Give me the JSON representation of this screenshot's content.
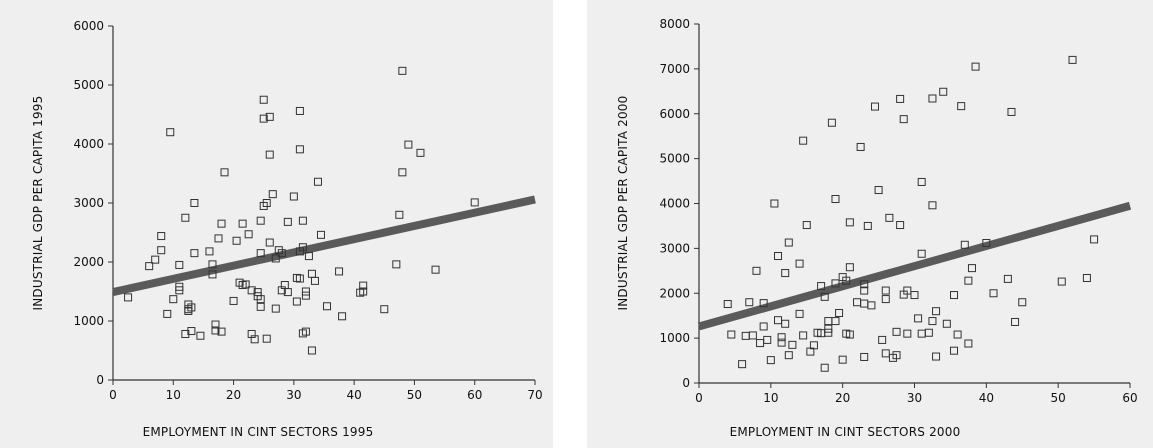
{
  "chart_data": [
    {
      "type": "scatter",
      "xlabel": "EMPLOYMENT IN CINT SECTORS 1995",
      "ylabel": "INDUSTRIAL GDP PER CAPITA 1995",
      "xlim": [
        0,
        70
      ],
      "ylim": [
        0,
        6000
      ],
      "xticks": [
        0,
        10,
        20,
        30,
        40,
        50,
        60,
        70
      ],
      "yticks": [
        0,
        1000,
        2000,
        3000,
        4000,
        5000,
        6000
      ],
      "trendline": {
        "x": [
          0,
          70
        ],
        "y": [
          1490,
          3060
        ]
      },
      "points": [
        [
          2.5,
          1400
        ],
        [
          6,
          1930
        ],
        [
          7,
          2040
        ],
        [
          8,
          2200
        ],
        [
          8,
          2440
        ],
        [
          9,
          1120
        ],
        [
          9.5,
          4200
        ],
        [
          10,
          1370
        ],
        [
          11,
          1950
        ],
        [
          11,
          1580
        ],
        [
          11,
          1520
        ],
        [
          12,
          2750
        ],
        [
          12,
          780
        ],
        [
          12.5,
          1280
        ],
        [
          12.5,
          1200
        ],
        [
          12.5,
          1170
        ],
        [
          13,
          1230
        ],
        [
          13,
          830
        ],
        [
          13.5,
          2150
        ],
        [
          13.5,
          3000
        ],
        [
          14.5,
          750
        ],
        [
          16,
          2180
        ],
        [
          16.5,
          1960
        ],
        [
          16.5,
          1790
        ],
        [
          17,
          940
        ],
        [
          17,
          840
        ],
        [
          17.5,
          2400
        ],
        [
          18,
          2650
        ],
        [
          18,
          820
        ],
        [
          18.5,
          3520
        ],
        [
          20,
          1340
        ],
        [
          20.5,
          2360
        ],
        [
          21,
          1650
        ],
        [
          21.5,
          2650
        ],
        [
          21.5,
          1610
        ],
        [
          22,
          1620
        ],
        [
          22.5,
          2470
        ],
        [
          23,
          1520
        ],
        [
          23,
          780
        ],
        [
          23.5,
          690
        ],
        [
          24,
          1490
        ],
        [
          24,
          1420
        ],
        [
          24.5,
          1370
        ],
        [
          24.5,
          1240
        ],
        [
          24.5,
          2150
        ],
        [
          24.5,
          2700
        ],
        [
          25,
          4430
        ],
        [
          25,
          4750
        ],
        [
          25,
          2950
        ],
        [
          25.5,
          700
        ],
        [
          25.5,
          3000
        ],
        [
          26,
          4460
        ],
        [
          26,
          3820
        ],
        [
          26,
          2330
        ],
        [
          26.5,
          3150
        ],
        [
          27,
          2060
        ],
        [
          27,
          1210
        ],
        [
          27.5,
          2200
        ],
        [
          28,
          1520
        ],
        [
          28,
          2150
        ],
        [
          28.5,
          1610
        ],
        [
          29,
          2680
        ],
        [
          29,
          1490
        ],
        [
          30,
          3110
        ],
        [
          30.5,
          1730
        ],
        [
          30.5,
          1330
        ],
        [
          31,
          2180
        ],
        [
          31,
          4560
        ],
        [
          31,
          3910
        ],
        [
          31,
          1720
        ],
        [
          31.5,
          2250
        ],
        [
          31.5,
          790
        ],
        [
          31.5,
          2700
        ],
        [
          32,
          1500
        ],
        [
          32,
          1430
        ],
        [
          32,
          820
        ],
        [
          32.5,
          2100
        ],
        [
          33,
          500
        ],
        [
          33,
          1800
        ],
        [
          33.5,
          1680
        ],
        [
          34,
          3360
        ],
        [
          34.5,
          2460
        ],
        [
          35.5,
          1250
        ],
        [
          37.5,
          1840
        ],
        [
          38,
          1080
        ],
        [
          41,
          1480
        ],
        [
          41.5,
          1500
        ],
        [
          41.5,
          1600
        ],
        [
          45,
          1200
        ],
        [
          47,
          1960
        ],
        [
          47.5,
          2800
        ],
        [
          48,
          3520
        ],
        [
          48,
          5240
        ],
        [
          49,
          3990
        ],
        [
          51,
          3850
        ],
        [
          53.5,
          1870
        ],
        [
          60,
          3010
        ]
      ]
    },
    {
      "type": "scatter",
      "xlabel": "EMPLOYMENT IN CINT SECTORS 2000",
      "ylabel": "INDUSTRIAL GDP PER CAPITA 2000",
      "xlim": [
        0,
        60
      ],
      "ylim": [
        0,
        8000
      ],
      "xticks": [
        0,
        10,
        20,
        30,
        40,
        50,
        60
      ],
      "yticks": [
        0,
        1000,
        2000,
        3000,
        4000,
        5000,
        6000,
        7000,
        8000
      ],
      "trendline": {
        "x": [
          0,
          60
        ],
        "y": [
          1260,
          3950
        ]
      },
      "points": [
        [
          4,
          1760
        ],
        [
          4.5,
          1080
        ],
        [
          6,
          420
        ],
        [
          6.5,
          1050
        ],
        [
          7,
          1800
        ],
        [
          7.5,
          1060
        ],
        [
          8,
          2500
        ],
        [
          8.5,
          890
        ],
        [
          9,
          1780
        ],
        [
          9,
          1260
        ],
        [
          9.5,
          960
        ],
        [
          10,
          510
        ],
        [
          10.5,
          4000
        ],
        [
          11,
          1400
        ],
        [
          11,
          2830
        ],
        [
          11.5,
          1020
        ],
        [
          11.5,
          900
        ],
        [
          12,
          1320
        ],
        [
          12,
          2450
        ],
        [
          12.5,
          3130
        ],
        [
          12.5,
          620
        ],
        [
          13,
          850
        ],
        [
          14,
          1540
        ],
        [
          14,
          2660
        ],
        [
          14.5,
          1060
        ],
        [
          14.5,
          5400
        ],
        [
          15,
          3520
        ],
        [
          15.5,
          700
        ],
        [
          16,
          840
        ],
        [
          16.5,
          1120
        ],
        [
          17,
          1110
        ],
        [
          17,
          2160
        ],
        [
          17.5,
          340
        ],
        [
          17.5,
          1920
        ],
        [
          18,
          1210
        ],
        [
          18,
          1120
        ],
        [
          18,
          1380
        ],
        [
          18.5,
          5800
        ],
        [
          19,
          1380
        ],
        [
          19,
          2220
        ],
        [
          19,
          4100
        ],
        [
          19.5,
          1560
        ],
        [
          20,
          2360
        ],
        [
          20,
          520
        ],
        [
          20.5,
          1100
        ],
        [
          20.5,
          2280
        ],
        [
          21,
          2580
        ],
        [
          21,
          1080
        ],
        [
          21,
          3580
        ],
        [
          22,
          1800
        ],
        [
          22.5,
          5260
        ],
        [
          23,
          2060
        ],
        [
          23,
          2200
        ],
        [
          23,
          1770
        ],
        [
          23,
          580
        ],
        [
          23.5,
          3500
        ],
        [
          24,
          1730
        ],
        [
          24.5,
          6160
        ],
        [
          25,
          4300
        ],
        [
          25.5,
          960
        ],
        [
          26,
          1870
        ],
        [
          26,
          2060
        ],
        [
          26,
          660
        ],
        [
          26.5,
          3680
        ],
        [
          27,
          560
        ],
        [
          27.5,
          1140
        ],
        [
          27.5,
          620
        ],
        [
          28,
          6330
        ],
        [
          28,
          3520
        ],
        [
          28.5,
          1970
        ],
        [
          28.5,
          5880
        ],
        [
          29,
          1100
        ],
        [
          29,
          2060
        ],
        [
          30,
          1960
        ],
        [
          30.5,
          1440
        ],
        [
          31,
          1100
        ],
        [
          31,
          2880
        ],
        [
          31,
          4480
        ],
        [
          32,
          1120
        ],
        [
          32.5,
          1380
        ],
        [
          32.5,
          3960
        ],
        [
          32.5,
          6340
        ],
        [
          33,
          1600
        ],
        [
          33,
          590
        ],
        [
          34,
          6490
        ],
        [
          34.5,
          1320
        ],
        [
          35.5,
          720
        ],
        [
          35.5,
          1960
        ],
        [
          36,
          1080
        ],
        [
          36.5,
          6170
        ],
        [
          37,
          3080
        ],
        [
          37.5,
          2280
        ],
        [
          37.5,
          880
        ],
        [
          38,
          2560
        ],
        [
          38.5,
          7050
        ],
        [
          40,
          3120
        ],
        [
          41,
          2000
        ],
        [
          43,
          2320
        ],
        [
          43.5,
          6040
        ],
        [
          44,
          1360
        ],
        [
          45,
          1800
        ],
        [
          50.5,
          2260
        ],
        [
          52,
          7200
        ],
        [
          54,
          2340
        ],
        [
          55,
          3200
        ]
      ]
    }
  ]
}
